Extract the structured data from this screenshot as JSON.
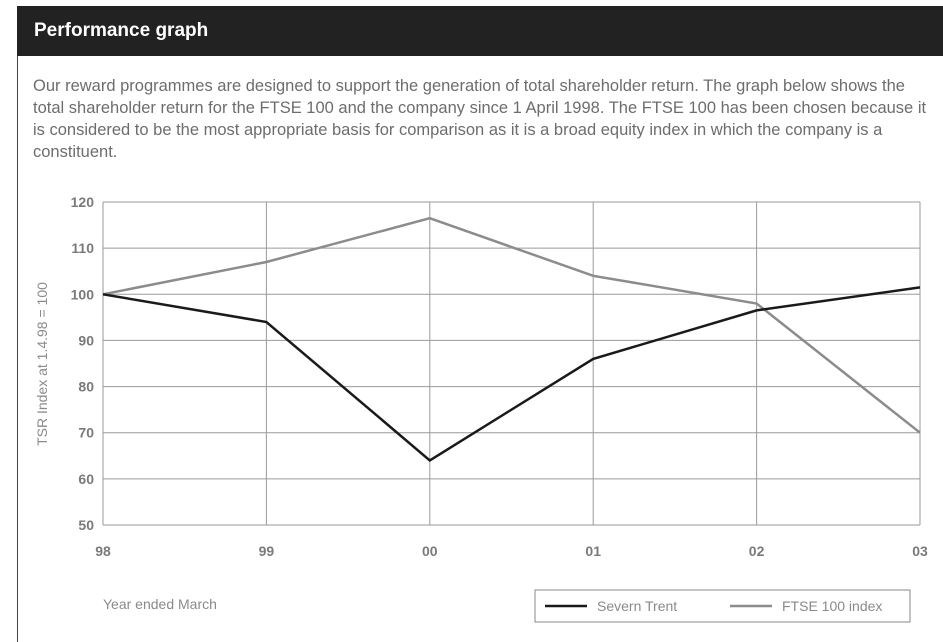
{
  "header": {
    "title": "Performance graph"
  },
  "intro": "Our reward programmes are designed to support the generation of total shareholder return. The graph below shows the total shareholder return for the FTSE 100 and the company since 1 April 1998. The FTSE 100 has been chosen because it is considered to be the most appropriate basis for comparison as it is a broad equity index in which the company is a constituent.",
  "chart_data": {
    "type": "line",
    "title": "",
    "xlabel": "Year ended March",
    "ylabel": "TSR Index at 1.4.98 = 100",
    "x": [
      "98",
      "99",
      "00",
      "01",
      "02",
      "03"
    ],
    "ylim": [
      50,
      120
    ],
    "yticks": [
      50,
      60,
      70,
      80,
      90,
      100,
      110,
      120
    ],
    "grid": true,
    "legend_position": "bottom-right",
    "series": [
      {
        "name": "Severn Trent",
        "color": "#1a1a1a",
        "values": [
          100,
          94,
          64,
          86,
          96.5,
          101.5
        ]
      },
      {
        "name": "FTSE 100 index",
        "color": "#8c8c8c",
        "values": [
          100,
          107,
          116.5,
          104,
          98,
          70
        ]
      }
    ]
  },
  "colors": {
    "header_bg": "#222222",
    "grid": "#9a9a9a",
    "text": "#6d6d6d"
  }
}
